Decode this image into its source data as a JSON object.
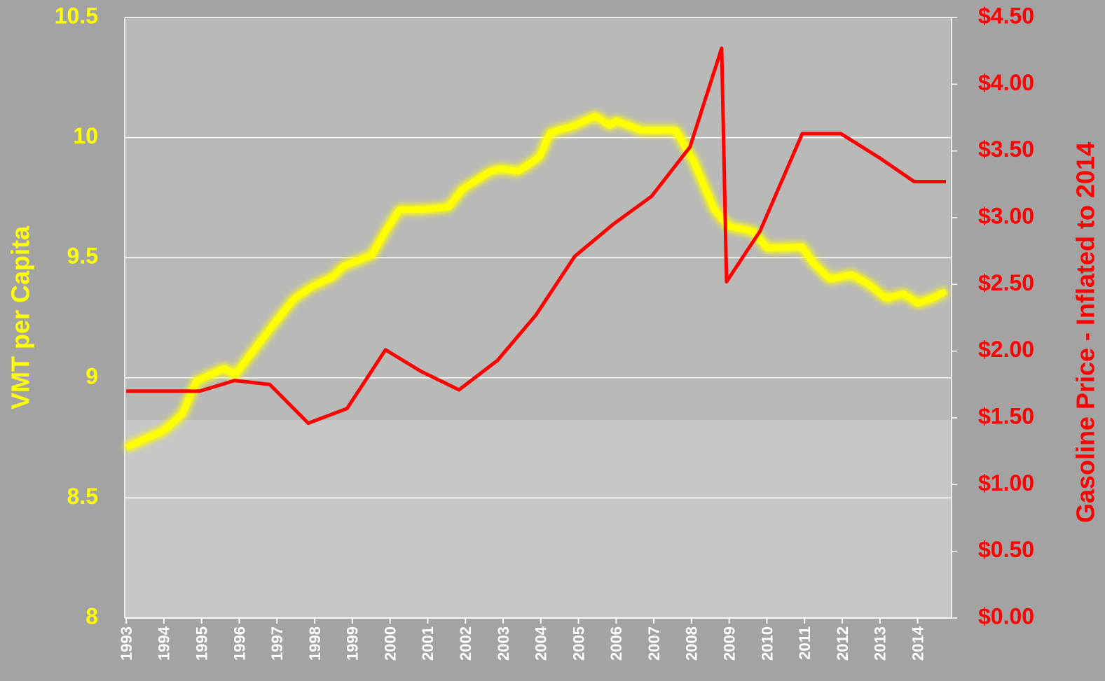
{
  "chart_data": {
    "type": "line",
    "y_label": "VMT per Capita",
    "y2_label": "Gasoline Price - Inflated to 2014",
    "xlim": [
      1992.96,
      2014.9
    ],
    "xticks": [
      1993,
      1994,
      1995,
      1996,
      1997,
      1998,
      1999,
      2000,
      2001,
      2002,
      2003,
      2004,
      2005,
      2006,
      2007,
      2008,
      2009,
      2010,
      2011,
      2012,
      2013,
      2014
    ],
    "ylim": [
      8,
      10.5
    ],
    "yticks": [
      8,
      8.5,
      9,
      9.5,
      10,
      10.5
    ],
    "y2lim": [
      0,
      4.5
    ],
    "y2ticks": [
      {
        "value": 0,
        "label": "$0.00"
      },
      {
        "value": 0.5,
        "label": "$0.50"
      },
      {
        "value": 1,
        "label": "$1.00"
      },
      {
        "value": 1.5,
        "label": "$1.50"
      },
      {
        "value": 2,
        "label": "$2.00"
      },
      {
        "value": 2.5,
        "label": "$2.50"
      },
      {
        "value": 3,
        "label": "$3.00"
      },
      {
        "value": 3.5,
        "label": "$3.50"
      },
      {
        "value": 4,
        "label": "$4.00"
      },
      {
        "value": 4.5,
        "label": "$4.50"
      }
    ],
    "grid": true,
    "series": [
      {
        "color": "#ffff00",
        "axis": "y",
        "x": [
          1993.0,
          1994.0,
          1994.49,
          1994.86,
          1995.6,
          1995.88,
          1996.53,
          1996.9,
          1997.46,
          1997.93,
          1998.48,
          1998.76,
          1999.51,
          1999.88,
          2000.25,
          2000.81,
          2001.55,
          2001.92,
          2002.67,
          2002.94,
          2003.41,
          2003.97,
          2004.25,
          2004.9,
          2005.45,
          2005.83,
          2006.01,
          2006.66,
          2007.03,
          2007.59,
          2008.06,
          2008.61,
          2008.99,
          2009.64,
          2010.01,
          2010.94,
          2011.22,
          2011.68,
          2012.24,
          2012.7,
          2013.17,
          2013.63,
          2014.0,
          2014.38,
          2014.75
        ],
        "values": [
          8.71,
          8.78,
          8.85,
          8.985,
          9.04,
          9.01,
          9.145,
          9.22,
          9.33,
          9.38,
          9.42,
          9.465,
          9.51,
          9.61,
          9.7,
          9.7,
          9.71,
          9.785,
          9.86,
          9.87,
          9.86,
          9.92,
          10.02,
          10.05,
          10.09,
          10.05,
          10.07,
          10.03,
          10.03,
          10.03,
          9.9,
          9.7,
          9.63,
          9.61,
          9.54,
          9.545,
          9.48,
          9.41,
          9.43,
          9.39,
          9.33,
          9.35,
          9.31,
          9.33,
          9.36
        ]
      },
      {
        "color": "#ff0000",
        "axis": "y2",
        "x": [
          1993.0,
          1994.95,
          1995.88,
          1996.81,
          1997.83,
          1998.86,
          1999.88,
          2000.81,
          2001.83,
          2002.85,
          2003.87,
          2004.9,
          2005.92,
          2006.94,
          2007.96,
          2008.8,
          2008.93,
          2009.82,
          2010.94,
          2011.96,
          2012.98,
          2013.91,
          2014.75
        ],
        "values": [
          1.7,
          1.7,
          1.78,
          1.75,
          1.46,
          1.57,
          2.01,
          1.85,
          1.71,
          1.93,
          2.27,
          2.71,
          2.95,
          3.16,
          3.53,
          4.27,
          2.52,
          2.9,
          3.63,
          3.63,
          3.45,
          3.27,
          3.27
        ]
      }
    ]
  }
}
